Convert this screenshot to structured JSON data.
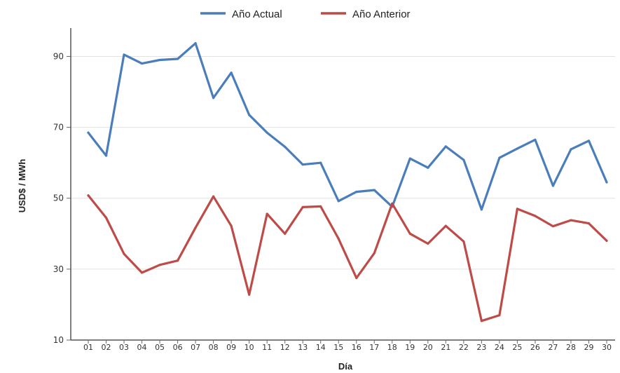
{
  "chart_data": {
    "type": "line",
    "title": "",
    "xlabel": "Día",
    "ylabel": "USD$ / MWh",
    "ylim": [
      10,
      98
    ],
    "yticks": [
      10,
      30,
      50,
      70,
      90
    ],
    "grid": true,
    "legend_position": "top-center",
    "categories": [
      "01",
      "02",
      "03",
      "04",
      "05",
      "06",
      "07",
      "08",
      "09",
      "10",
      "11",
      "12",
      "13",
      "14",
      "15",
      "16",
      "17",
      "18",
      "19",
      "20",
      "21",
      "22",
      "23",
      "24",
      "25",
      "26",
      "27",
      "28",
      "29",
      "30"
    ],
    "series": [
      {
        "name": "Año Actual",
        "color": "#4a7ebb",
        "values": [
          68.5,
          62,
          90.5,
          88,
          89,
          89.3,
          93.7,
          78.3,
          85.4,
          73.5,
          68.5,
          64.5,
          59.5,
          60,
          49.2,
          51.8,
          52.3,
          47.6,
          61.2,
          58.6,
          64.6,
          60.8,
          46.8,
          61.4,
          64,
          66.5,
          53.5,
          63.8,
          66.2,
          54.5
        ]
      },
      {
        "name": "Año Anterior",
        "color": "#be4b48",
        "values": [
          50.8,
          44.5,
          34.3,
          29,
          31.2,
          32.4,
          41.7,
          50.5,
          42.2,
          22.8,
          45.6,
          40,
          47.5,
          47.7,
          38.6,
          27.5,
          34.5,
          48.5,
          40,
          37.2,
          42.2,
          37.8,
          15.4,
          17,
          47,
          45,
          42.1,
          43.8,
          42.9,
          38
        ]
      }
    ]
  }
}
